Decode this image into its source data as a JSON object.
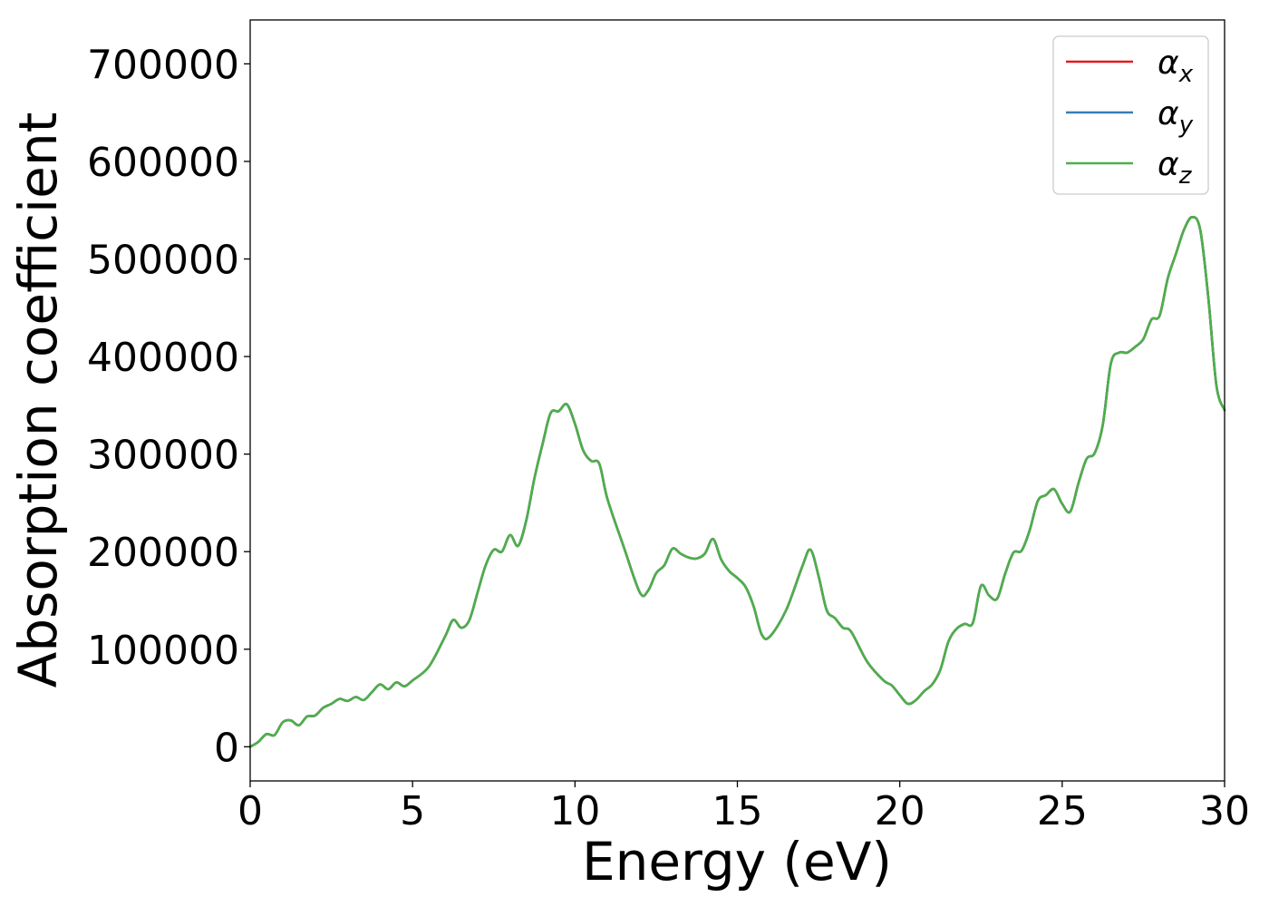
{
  "chart_data": {
    "type": "line",
    "xlabel": "Energy (eV)",
    "ylabel": "Absorption coefficient",
    "xlim": [
      0,
      30
    ],
    "ylim": [
      -35000,
      745000
    ],
    "xticks": [
      "0",
      "5",
      "10",
      "15",
      "20",
      "25",
      "30"
    ],
    "yticks": [
      "0",
      "100000",
      "200000",
      "300000",
      "400000",
      "500000",
      "600000",
      "700000"
    ],
    "grid": false,
    "legend_position": "top-right",
    "x": [
      0,
      0.25,
      0.5,
      0.75,
      1.0,
      1.25,
      1.5,
      1.75,
      2.0,
      2.25,
      2.5,
      2.75,
      3.0,
      3.25,
      3.5,
      3.75,
      4.0,
      4.25,
      4.5,
      4.75,
      5.0,
      5.5,
      6.0,
      6.25,
      6.5,
      6.75,
      7.0,
      7.25,
      7.5,
      7.75,
      8.0,
      8.25,
      8.5,
      8.75,
      9.0,
      9.25,
      9.5,
      9.75,
      10.0,
      10.25,
      10.5,
      10.75,
      11.0,
      11.5,
      12.0,
      12.25,
      12.5,
      12.75,
      13.0,
      13.25,
      13.5,
      13.75,
      14.0,
      14.25,
      14.5,
      14.75,
      15.0,
      15.25,
      15.5,
      15.75,
      16.0,
      16.5,
      17.0,
      17.25,
      17.5,
      17.75,
      18.0,
      18.25,
      18.5,
      19.0,
      19.5,
      19.75,
      20.0,
      20.25,
      20.5,
      20.75,
      21.0,
      21.25,
      21.5,
      21.75,
      22.0,
      22.25,
      22.5,
      22.75,
      23.0,
      23.25,
      23.5,
      23.75,
      24.0,
      24.25,
      24.5,
      24.75,
      25.0,
      25.25,
      25.5,
      25.75,
      26.0,
      26.25,
      26.5,
      26.75,
      27.0,
      27.25,
      27.5,
      27.75,
      28.0,
      28.25,
      28.5,
      28.75,
      29.0,
      29.25,
      29.5,
      29.75,
      30.0
    ],
    "series": [
      {
        "name": "α_x",
        "color": "#e41a1c",
        "values": [
          0,
          5000,
          13000,
          12000,
          25000,
          27000,
          22000,
          31000,
          32000,
          40000,
          44000,
          49000,
          47000,
          51000,
          48000,
          56000,
          64000,
          59000,
          66000,
          62000,
          68000,
          82000,
          113000,
          130000,
          122000,
          130000,
          158000,
          186000,
          202000,
          200000,
          217000,
          206000,
          232000,
          275000,
          310000,
          342000,
          344000,
          351000,
          331000,
          304000,
          293000,
          290000,
          254000,
          205000,
          158000,
          160000,
          178000,
          186000,
          203000,
          198000,
          194000,
          193000,
          198000,
          213000,
          192000,
          180000,
          173000,
          164000,
          144000,
          115000,
          113000,
          140000,
          185000,
          202000,
          175000,
          140000,
          132000,
          122000,
          118000,
          87000,
          68000,
          63000,
          53000,
          44000,
          48000,
          57000,
          64000,
          79000,
          108000,
          121000,
          126000,
          127000,
          165000,
          155000,
          152000,
          178000,
          199000,
          201000,
          222000,
          252000,
          258000,
          264000,
          249000,
          241000,
          270000,
          295000,
          301000,
          330000,
          393000,
          404000,
          404000,
          410000,
          418000,
          438000,
          442000,
          480000,
          505000,
          530000,
          543000,
          530000,
          460000,
          370000,
          345000
        ]
      },
      {
        "name": "α_y",
        "color": "#377eb8",
        "values": [
          0,
          5000,
          13000,
          12000,
          25000,
          27000,
          22000,
          31000,
          32000,
          40000,
          44000,
          49000,
          47000,
          51000,
          48000,
          56000,
          64000,
          59000,
          66000,
          62000,
          68000,
          82000,
          113000,
          130000,
          122000,
          130000,
          158000,
          186000,
          202000,
          200000,
          217000,
          206000,
          232000,
          275000,
          310000,
          342000,
          344000,
          351000,
          331000,
          304000,
          293000,
          290000,
          254000,
          205000,
          158000,
          160000,
          178000,
          186000,
          203000,
          198000,
          194000,
          193000,
          198000,
          213000,
          192000,
          180000,
          173000,
          164000,
          144000,
          115000,
          113000,
          140000,
          185000,
          202000,
          175000,
          140000,
          132000,
          122000,
          118000,
          87000,
          68000,
          63000,
          53000,
          44000,
          48000,
          57000,
          64000,
          79000,
          108000,
          121000,
          126000,
          127000,
          165000,
          155000,
          152000,
          178000,
          199000,
          201000,
          222000,
          252000,
          258000,
          264000,
          249000,
          241000,
          270000,
          295000,
          301000,
          330000,
          393000,
          404000,
          404000,
          410000,
          418000,
          438000,
          442000,
          480000,
          505000,
          530000,
          543000,
          530000,
          460000,
          370000,
          345000
        ]
      },
      {
        "name": "α_z",
        "color": "#4daf4a",
        "values": [
          0,
          5000,
          13000,
          12000,
          25000,
          27000,
          22000,
          31000,
          32000,
          40000,
          44000,
          49000,
          47000,
          51000,
          48000,
          56000,
          64000,
          59000,
          66000,
          62000,
          68000,
          82000,
          113000,
          130000,
          122000,
          130000,
          158000,
          186000,
          202000,
          200000,
          217000,
          206000,
          232000,
          275000,
          310000,
          342000,
          344000,
          351000,
          331000,
          304000,
          293000,
          290000,
          254000,
          205000,
          158000,
          160000,
          178000,
          186000,
          203000,
          198000,
          194000,
          193000,
          198000,
          213000,
          192000,
          180000,
          173000,
          164000,
          144000,
          115000,
          113000,
          140000,
          185000,
          202000,
          175000,
          140000,
          132000,
          122000,
          118000,
          87000,
          68000,
          63000,
          53000,
          44000,
          48000,
          57000,
          64000,
          79000,
          108000,
          121000,
          126000,
          127000,
          165000,
          155000,
          152000,
          178000,
          199000,
          201000,
          222000,
          252000,
          258000,
          264000,
          249000,
          241000,
          270000,
          295000,
          301000,
          330000,
          393000,
          404000,
          404000,
          410000,
          418000,
          438000,
          442000,
          480000,
          505000,
          530000,
          543000,
          530000,
          460000,
          370000,
          345000
        ]
      }
    ]
  }
}
